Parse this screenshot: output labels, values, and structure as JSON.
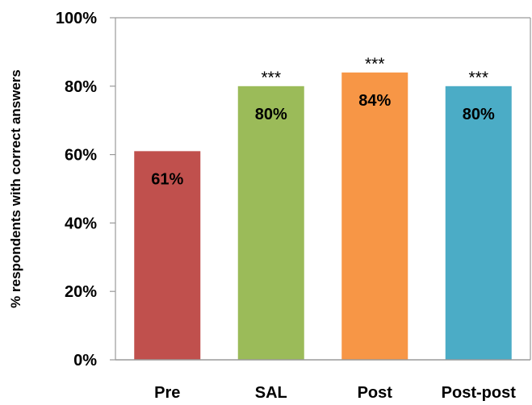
{
  "chart_data": {
    "type": "bar",
    "title": "",
    "xlabel": "",
    "ylabel": "% respondents with correct answers",
    "ylim": [
      0,
      100
    ],
    "yticks": [
      "0%",
      "20%",
      "40%",
      "60%",
      "80%",
      "100%"
    ],
    "categories": [
      "Pre",
      "SAL",
      "Post",
      "Post-post"
    ],
    "values": [
      61,
      80,
      84,
      80
    ],
    "data_labels": [
      "61%",
      "80%",
      "84%",
      "80%"
    ],
    "significance": [
      "",
      "***",
      "***",
      "***"
    ],
    "colors": [
      "#c0504d",
      "#9bbb59",
      "#f79646",
      "#4bacc6"
    ],
    "grid": false,
    "legend": "none"
  }
}
